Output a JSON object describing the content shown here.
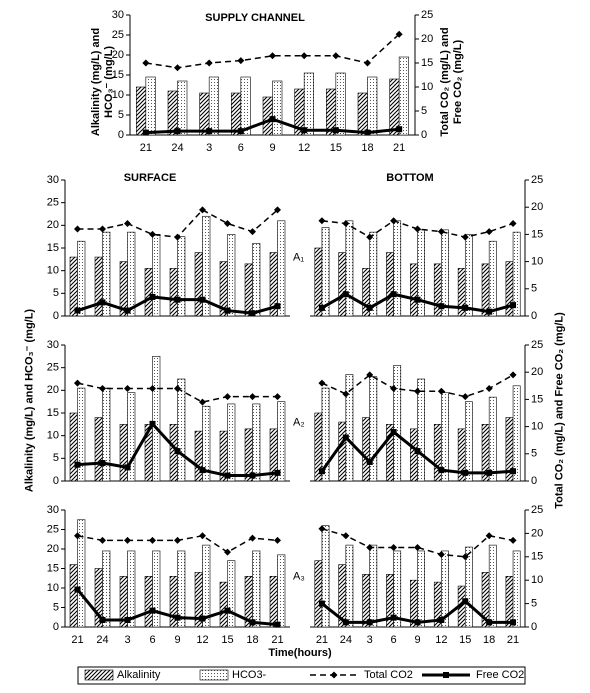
{
  "figure": {
    "ylabel": "Alkalinity (mg/L) and HCO₃⁻ (mg/L)",
    "y2label": "Total CO₂ (mg/L) and Free CO₂ (mg/L)",
    "xlabel": "Time(hours)"
  },
  "chart_data": [
    {
      "type": "bar",
      "title": "SUPPLY CHANNEL",
      "ylabel": "Alkalinity (mg/L) and HCO₃⁻ (mg/L)",
      "y2label": "Total CO₂ (mg/L) and Free CO₂ (mg/L)",
      "categories": [
        "21",
        "24",
        "3",
        "6",
        "9",
        "12",
        "15",
        "18",
        "21"
      ],
      "series": [
        {
          "name": "Alkalinity",
          "type": "bar",
          "values": [
            12,
            11,
            10.5,
            10.5,
            9.5,
            11.5,
            11.5,
            10.5,
            14
          ]
        },
        {
          "name": "HCO3-",
          "type": "bar",
          "values": [
            14.5,
            13.5,
            14.5,
            14.5,
            13.5,
            15.5,
            15.5,
            14.5,
            19.5
          ]
        },
        {
          "name": "Total CO2",
          "type": "line",
          "axis": "y2",
          "linestyle": "dashed",
          "marker": "diamond",
          "values": [
            15,
            14,
            15,
            15.5,
            16.5,
            16.5,
            16.5,
            15,
            21
          ]
        },
        {
          "name": "Free CO2",
          "type": "line",
          "axis": "y2",
          "linestyle": "solid",
          "marker": "square",
          "values": [
            0.5,
            0.8,
            0.8,
            0.8,
            3.3,
            1,
            1,
            0.5,
            1.2
          ]
        }
      ],
      "ylim": [
        0,
        30
      ],
      "yticks": [
        0,
        5,
        10,
        15,
        20,
        25,
        30
      ],
      "y2lim": [
        0,
        25
      ],
      "y2ticks": [
        0,
        5,
        10,
        15,
        20,
        25
      ]
    },
    {
      "type": "bar",
      "title": "SURFACE",
      "annotation": "A₁",
      "categories": [
        null,
        null,
        null,
        null,
        null,
        null,
        null,
        null,
        null
      ],
      "series": [
        {
          "name": "Alkalinity",
          "type": "bar",
          "values": [
            13,
            13,
            12,
            10.5,
            10.5,
            14,
            12,
            11.5,
            14
          ]
        },
        {
          "name": "HCO3-",
          "type": "bar",
          "values": [
            16.5,
            18.5,
            18.5,
            18,
            17.5,
            22,
            18,
            16,
            21
          ]
        },
        {
          "name": "Total CO2",
          "type": "line",
          "axis": "y2",
          "linestyle": "dashed",
          "marker": "diamond",
          "values": [
            16,
            16,
            17,
            15,
            14.5,
            19.5,
            17,
            15.5,
            19.5
          ]
        },
        {
          "name": "Free CO2",
          "type": "line",
          "axis": "y2",
          "linestyle": "solid",
          "marker": "square",
          "values": [
            1,
            2.5,
            1,
            3.5,
            3,
            3,
            1,
            0.5,
            1.8
          ]
        }
      ],
      "ylim": [
        0,
        30
      ],
      "yticks": [
        0,
        5,
        10,
        15,
        20,
        25,
        30
      ],
      "y2lim": [
        0,
        25
      ]
    },
    {
      "type": "bar",
      "title": "BOTTOM",
      "categories": [
        null,
        null,
        null,
        null,
        null,
        null,
        null,
        null,
        null
      ],
      "series": [
        {
          "name": "Alkalinity",
          "type": "bar",
          "values": [
            15,
            14,
            10.5,
            14,
            11.5,
            11.5,
            10.5,
            11.5,
            12
          ]
        },
        {
          "name": "HCO3-",
          "type": "bar",
          "values": [
            19.5,
            21,
            18.5,
            21,
            19,
            19,
            18,
            16.5,
            18.5
          ]
        },
        {
          "name": "Total CO2",
          "type": "line",
          "axis": "y2",
          "linestyle": "dashed",
          "marker": "diamond",
          "values": [
            17.5,
            17,
            14.5,
            17.5,
            16,
            15.5,
            14.5,
            15.5,
            17
          ]
        },
        {
          "name": "Free CO2",
          "type": "line",
          "axis": "y2",
          "linestyle": "solid",
          "marker": "square",
          "values": [
            1.5,
            4,
            1.5,
            4,
            3,
            1.8,
            1.5,
            0.8,
            2
          ]
        }
      ],
      "ylim": [
        0,
        30
      ],
      "y2lim": [
        0,
        25
      ],
      "y2ticks": [
        0,
        5,
        10,
        15,
        20,
        25
      ]
    },
    {
      "type": "bar",
      "annotation": "A₂",
      "categories": [
        null,
        null,
        null,
        null,
        null,
        null,
        null,
        null,
        null
      ],
      "series": [
        {
          "name": "Alkalinity",
          "type": "bar",
          "values": [
            15,
            14,
            12.5,
            12.5,
            12.5,
            11,
            11,
            11.5,
            11.5
          ]
        },
        {
          "name": "HCO3-",
          "type": "bar",
          "values": [
            20.5,
            20.5,
            19.5,
            27.5,
            22.5,
            16.5,
            17,
            17,
            17.5
          ]
        },
        {
          "name": "Total CO2",
          "type": "line",
          "axis": "y2",
          "linestyle": "dashed",
          "marker": "diamond",
          "values": [
            18,
            17,
            17,
            17,
            17,
            14.5,
            15.5,
            15.5,
            15.5
          ]
        },
        {
          "name": "Free CO2",
          "type": "line",
          "axis": "y2",
          "linestyle": "solid",
          "marker": "square",
          "values": [
            3,
            3.3,
            2.5,
            10.5,
            5.5,
            2,
            1,
            1,
            1.5
          ]
        }
      ],
      "ylim": [
        0,
        30
      ],
      "yticks": [
        0,
        5,
        10,
        15,
        20,
        25,
        30
      ],
      "y2lim": [
        0,
        25
      ]
    },
    {
      "type": "bar",
      "categories": [
        null,
        null,
        null,
        null,
        null,
        null,
        null,
        null,
        null
      ],
      "series": [
        {
          "name": "Alkalinity",
          "type": "bar",
          "values": [
            15,
            13,
            14,
            12.5,
            11.5,
            12.5,
            11.5,
            12.5,
            14
          ]
        },
        {
          "name": "HCO3-",
          "type": "bar",
          "values": [
            20.5,
            23.5,
            23,
            25.5,
            22.5,
            19.5,
            17.5,
            18.5,
            21
          ]
        },
        {
          "name": "Total CO2",
          "type": "line",
          "axis": "y2",
          "linestyle": "dashed",
          "marker": "diamond",
          "values": [
            18,
            16,
            19.5,
            17,
            16.5,
            16.5,
            15.5,
            17,
            19.5
          ]
        },
        {
          "name": "Free CO2",
          "type": "line",
          "axis": "y2",
          "linestyle": "solid",
          "marker": "square",
          "values": [
            1.8,
            8,
            3.5,
            9,
            5.5,
            2,
            1.5,
            1.5,
            1.8
          ]
        }
      ],
      "ylim": [
        0,
        30
      ],
      "y2lim": [
        0,
        25
      ],
      "y2ticks": [
        0,
        5,
        10,
        15,
        20,
        25
      ]
    },
    {
      "type": "bar",
      "annotation": "A₃",
      "categories": [
        "21",
        "24",
        "3",
        "6",
        "9",
        "12",
        "15",
        "18",
        "21"
      ],
      "series": [
        {
          "name": "Alkalinity",
          "type": "bar",
          "values": [
            16,
            15,
            13,
            13,
            13,
            14,
            11.5,
            13,
            13
          ]
        },
        {
          "name": "HCO3-",
          "type": "bar",
          "values": [
            27.5,
            19.5,
            19.5,
            19.5,
            19.5,
            21,
            17,
            19.5,
            18.5
          ]
        },
        {
          "name": "Total CO2",
          "type": "line",
          "axis": "y2",
          "linestyle": "dashed",
          "marker": "diamond",
          "values": [
            19.5,
            18.5,
            18.5,
            18.5,
            18.5,
            19.5,
            16,
            19,
            18.5
          ]
        },
        {
          "name": "Free CO2",
          "type": "line",
          "axis": "y2",
          "linestyle": "solid",
          "marker": "square",
          "values": [
            8,
            1.5,
            1.5,
            3.5,
            2,
            1.8,
            3.5,
            1,
            0.5
          ]
        }
      ],
      "ylim": [
        0,
        30
      ],
      "yticks": [
        0,
        5,
        10,
        15,
        20,
        25,
        30
      ],
      "y2lim": [
        0,
        25
      ]
    },
    {
      "type": "bar",
      "categories": [
        "21",
        "24",
        "3",
        "6",
        "9",
        "12",
        "15",
        "18",
        "21"
      ],
      "series": [
        {
          "name": "Alkalinity",
          "type": "bar",
          "values": [
            17,
            16,
            13.5,
            13.5,
            12,
            11.5,
            10.5,
            14,
            13
          ]
        },
        {
          "name": "HCO3-",
          "type": "bar",
          "values": [
            26,
            21,
            21,
            19.5,
            19.5,
            19.5,
            20.5,
            21,
            19.5
          ]
        },
        {
          "name": "Total CO2",
          "type": "line",
          "axis": "y2",
          "linestyle": "dashed",
          "marker": "diamond",
          "values": [
            21,
            19.5,
            17,
            17,
            17,
            15.5,
            15,
            19.5,
            18.5
          ]
        },
        {
          "name": "Free CO2",
          "type": "line",
          "axis": "y2",
          "linestyle": "solid",
          "marker": "square",
          "values": [
            5,
            1,
            1,
            2,
            1,
            1.5,
            5.5,
            1,
            1
          ]
        }
      ],
      "ylim": [
        0,
        30
      ],
      "y2lim": [
        0,
        25
      ],
      "y2ticks": [
        0,
        5,
        10,
        15,
        20,
        25
      ]
    }
  ]
}
